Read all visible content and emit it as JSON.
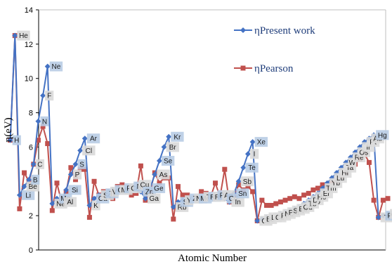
{
  "chart_data": {
    "type": "line",
    "xlabel": "Atomic Number",
    "ylabel": "η(eV)",
    "ylim": [
      0,
      14
    ],
    "yticks": [
      0,
      2,
      4,
      6,
      8,
      10,
      12,
      14
    ],
    "xlim": [
      0,
      82
    ],
    "grid": false,
    "legend_position": "top-right",
    "series": [
      {
        "name": "ηPresent work",
        "color": "#4472C4",
        "marker": "diamond",
        "points": [
          {
            "x": 1,
            "y": 6.4,
            "label": "H"
          },
          {
            "x": 2,
            "y": 12.5,
            "label": "He"
          },
          {
            "x": 3,
            "y": 3.2,
            "label": "Li"
          },
          {
            "x": 4,
            "y": 3.7,
            "label": "Be"
          },
          {
            "x": 5,
            "y": 4.1,
            "label": "B"
          },
          {
            "x": 6,
            "y": 5.0,
            "label": "C"
          },
          {
            "x": 7,
            "y": 7.5,
            "label": "N"
          },
          {
            "x": 8,
            "y": 9.0,
            "label": "F"
          },
          {
            "x": 9,
            "y": 10.7,
            "label": "Ne"
          },
          {
            "x": 10,
            "y": 2.7,
            "label": "Na"
          },
          {
            "x": 11,
            "y": 3.0,
            "label": "Mg"
          },
          {
            "x": 12,
            "y": 2.8,
            "label": "Al"
          },
          {
            "x": 13,
            "y": 3.5,
            "label": "Si"
          },
          {
            "x": 14,
            "y": 4.4,
            "label": "P"
          },
          {
            "x": 15,
            "y": 5.0,
            "label": "S"
          },
          {
            "x": 16,
            "y": 5.8,
            "label": "Cl"
          },
          {
            "x": 17,
            "y": 6.5,
            "label": "Ar"
          },
          {
            "x": 18,
            "y": 2.6,
            "label": "K"
          },
          {
            "x": 19,
            "y": 3.0,
            "label": "Ca"
          },
          {
            "x": 20,
            "y": 3.2,
            "label": "Sc"
          },
          {
            "x": 21,
            "y": 3.3,
            "label": "Ti"
          },
          {
            "x": 22,
            "y": 3.4,
            "label": "V"
          },
          {
            "x": 23,
            "y": 3.5,
            "label": "Cr"
          },
          {
            "x": 24,
            "y": 3.5,
            "label": "Mn"
          },
          {
            "x": 25,
            "y": 3.6,
            "label": "Fe"
          },
          {
            "x": 26,
            "y": 3.6,
            "label": "Co"
          },
          {
            "x": 27,
            "y": 3.7,
            "label": "Ni"
          },
          {
            "x": 28,
            "y": 3.8,
            "label": "Cu"
          },
          {
            "x": 29,
            "y": 3.4,
            "label": "Zn"
          },
          {
            "x": 30,
            "y": 3.0,
            "label": "Ga"
          },
          {
            "x": 31,
            "y": 3.6,
            "label": "Ge"
          },
          {
            "x": 32,
            "y": 4.4,
            "label": "As"
          },
          {
            "x": 33,
            "y": 5.2,
            "label": "Se"
          },
          {
            "x": 34,
            "y": 6.0,
            "label": "Br"
          },
          {
            "x": 35,
            "y": 6.6,
            "label": "Kr"
          },
          {
            "x": 36,
            "y": 2.5,
            "label": "Rb"
          },
          {
            "x": 37,
            "y": 2.8,
            "label": "Sr"
          },
          {
            "x": 38,
            "y": 2.9,
            "label": "Y"
          },
          {
            "x": 39,
            "y": 3.0,
            "label": "Zr"
          },
          {
            "x": 40,
            "y": 3.0,
            "label": "Nb"
          },
          {
            "x": 41,
            "y": 3.0,
            "label": "Mo"
          },
          {
            "x": 42,
            "y": 3.1,
            "label": "Tc"
          },
          {
            "x": 43,
            "y": 3.1,
            "label": "Ru"
          },
          {
            "x": 44,
            "y": 3.1,
            "label": "Rh"
          },
          {
            "x": 45,
            "y": 3.2,
            "label": "Pd"
          },
          {
            "x": 46,
            "y": 3.2,
            "label": "Ag"
          },
          {
            "x": 47,
            "y": 3.0,
            "label": "Cd"
          },
          {
            "x": 48,
            "y": 2.8,
            "label": "In"
          },
          {
            "x": 49,
            "y": 3.3,
            "label": "Sn"
          },
          {
            "x": 50,
            "y": 4.0,
            "label": "Sb"
          },
          {
            "x": 51,
            "y": 4.8,
            "label": "Te"
          },
          {
            "x": 52,
            "y": 5.6,
            "label": "I"
          },
          {
            "x": 53,
            "y": 6.3,
            "label": "Xe"
          },
          {
            "x": 54,
            "y": 1.7,
            "label": "Cs"
          },
          {
            "x": 55,
            "y": 1.8,
            "label": "Ba"
          },
          {
            "x": 56,
            "y": 1.9,
            "label": "La"
          },
          {
            "x": 57,
            "y": 1.9,
            "label": "Ce"
          },
          {
            "x": 58,
            "y": 2.0,
            "label": "Pr"
          },
          {
            "x": 59,
            "y": 2.1,
            "label": "Nd"
          },
          {
            "x": 60,
            "y": 2.2,
            "label": "Pm"
          },
          {
            "x": 61,
            "y": 2.3,
            "label": "Sm"
          },
          {
            "x": 62,
            "y": 2.4,
            "label": "Eu"
          },
          {
            "x": 63,
            "y": 2.5,
            "label": "Gd"
          },
          {
            "x": 64,
            "y": 2.7,
            "label": "Tb"
          },
          {
            "x": 65,
            "y": 2.9,
            "label": "Dy"
          },
          {
            "x": 66,
            "y": 3.1,
            "label": "Ho"
          },
          {
            "x": 67,
            "y": 3.3,
            "label": "Er"
          },
          {
            "x": 68,
            "y": 3.6,
            "label": "Tm"
          },
          {
            "x": 69,
            "y": 3.9,
            "label": "Yb"
          },
          {
            "x": 70,
            "y": 4.2,
            "label": "Lu"
          },
          {
            "x": 71,
            "y": 4.5,
            "label": "Hf"
          },
          {
            "x": 72,
            "y": 4.8,
            "label": "Ta"
          },
          {
            "x": 73,
            "y": 5.1,
            "label": "W"
          },
          {
            "x": 74,
            "y": 5.4,
            "label": "Re"
          },
          {
            "x": 75,
            "y": 5.7,
            "label": "Os"
          },
          {
            "x": 76,
            "y": 6.0,
            "label": "Ir"
          },
          {
            "x": 77,
            "y": 6.3,
            "label": "Pt"
          },
          {
            "x": 78,
            "y": 6.5,
            "label": "Au"
          },
          {
            "x": 79,
            "y": 6.7,
            "label": "Hg"
          },
          {
            "x": 80,
            "y": 1.9,
            "label": "Tl"
          },
          {
            "x": 81,
            "y": 2.0,
            "label": "Pb"
          },
          {
            "x": 82,
            "y": 2.1,
            "label": "Bi"
          }
        ]
      },
      {
        "name": "ηPearson",
        "color": "#C0504D",
        "marker": "square",
        "points": [
          {
            "x": 1,
            "y": 6.4
          },
          {
            "x": 2,
            "y": 12.5
          },
          {
            "x": 3,
            "y": 2.4
          },
          {
            "x": 4,
            "y": 4.5
          },
          {
            "x": 5,
            "y": 4.0
          },
          {
            "x": 6,
            "y": 5.0
          },
          {
            "x": 7,
            "y": 6.4
          },
          {
            "x": 8,
            "y": 7.2
          },
          {
            "x": 9,
            "y": 6.2
          },
          {
            "x": 10,
            "y": 2.3
          },
          {
            "x": 11,
            "y": 3.9
          },
          {
            "x": 12,
            "y": 2.8
          },
          {
            "x": 13,
            "y": 3.4
          },
          {
            "x": 14,
            "y": 4.8
          },
          {
            "x": 15,
            "y": 4.1
          },
          {
            "x": 16,
            "y": 4.7
          },
          {
            "x": 17,
            "y": 4.7
          },
          {
            "x": 18,
            "y": 1.9
          },
          {
            "x": 19,
            "y": 4.0
          },
          {
            "x": 20,
            "y": 3.2
          },
          {
            "x": 21,
            "y": 3.4
          },
          {
            "x": 22,
            "y": 3.1
          },
          {
            "x": 23,
            "y": 3.0
          },
          {
            "x": 24,
            "y": 3.7
          },
          {
            "x": 25,
            "y": 3.8
          },
          {
            "x": 26,
            "y": 3.5
          },
          {
            "x": 27,
            "y": 3.2
          },
          {
            "x": 28,
            "y": 3.3
          },
          {
            "x": 29,
            "y": 4.9
          },
          {
            "x": 30,
            "y": 2.9
          },
          {
            "x": 31,
            "y": 3.4
          },
          {
            "x": 32,
            "y": 4.5
          },
          {
            "x": 33,
            "y": 3.9
          },
          {
            "x": 34,
            "y": 4.2
          },
          {
            "x": 35,
            "y": 4.2
          },
          {
            "x": 36,
            "y": 1.8
          },
          {
            "x": 37,
            "y": 3.7
          },
          {
            "x": 38,
            "y": 3.2
          },
          {
            "x": 39,
            "y": 3.2
          },
          {
            "x": 40,
            "y": 3.0
          },
          {
            "x": 41,
            "y": 3.1
          },
          {
            "x": 42,
            "y": 3.4
          },
          {
            "x": 43,
            "y": 3.3
          },
          {
            "x": 44,
            "y": 3.1
          },
          {
            "x": 45,
            "y": 3.9
          },
          {
            "x": 46,
            "y": 3.1
          },
          {
            "x": 47,
            "y": 4.7
          },
          {
            "x": 48,
            "y": 2.8
          },
          {
            "x": 49,
            "y": 3.1
          },
          {
            "x": 50,
            "y": 3.8
          },
          {
            "x": 51,
            "y": 3.5
          },
          {
            "x": 52,
            "y": 3.7
          },
          {
            "x": 53,
            "y": 3.4
          },
          {
            "x": 54,
            "y": 1.7
          },
          {
            "x": 55,
            "y": 2.9
          },
          {
            "x": 56,
            "y": 2.6
          },
          {
            "x": 57,
            "y": 2.6
          },
          {
            "x": 58,
            "y": 2.7
          },
          {
            "x": 59,
            "y": 2.8
          },
          {
            "x": 60,
            "y": 2.9
          },
          {
            "x": 61,
            "y": 3.0
          },
          {
            "x": 62,
            "y": 3.1
          },
          {
            "x": 63,
            "y": 3.0
          },
          {
            "x": 64,
            "y": 3.2
          },
          {
            "x": 65,
            "y": 3.3
          },
          {
            "x": 66,
            "y": 3.5
          },
          {
            "x": 67,
            "y": 3.6
          },
          {
            "x": 68,
            "y": 3.8
          },
          {
            "x": 69,
            "y": 3.7
          },
          {
            "x": 70,
            "y": 3.9
          },
          {
            "x": 71,
            "y": 4.0
          },
          {
            "x": 72,
            "y": 4.3
          },
          {
            "x": 73,
            "y": 4.5
          },
          {
            "x": 74,
            "y": 4.8
          },
          {
            "x": 75,
            "y": 5.0
          },
          {
            "x": 76,
            "y": 5.3
          },
          {
            "x": 77,
            "y": 5.6
          },
          {
            "x": 78,
            "y": 5.1
          },
          {
            "x": 79,
            "y": 2.9
          },
          {
            "x": 80,
            "y": 1.9
          },
          {
            "x": 81,
            "y": 2.9
          },
          {
            "x": 82,
            "y": 3.0
          }
        ]
      }
    ]
  }
}
